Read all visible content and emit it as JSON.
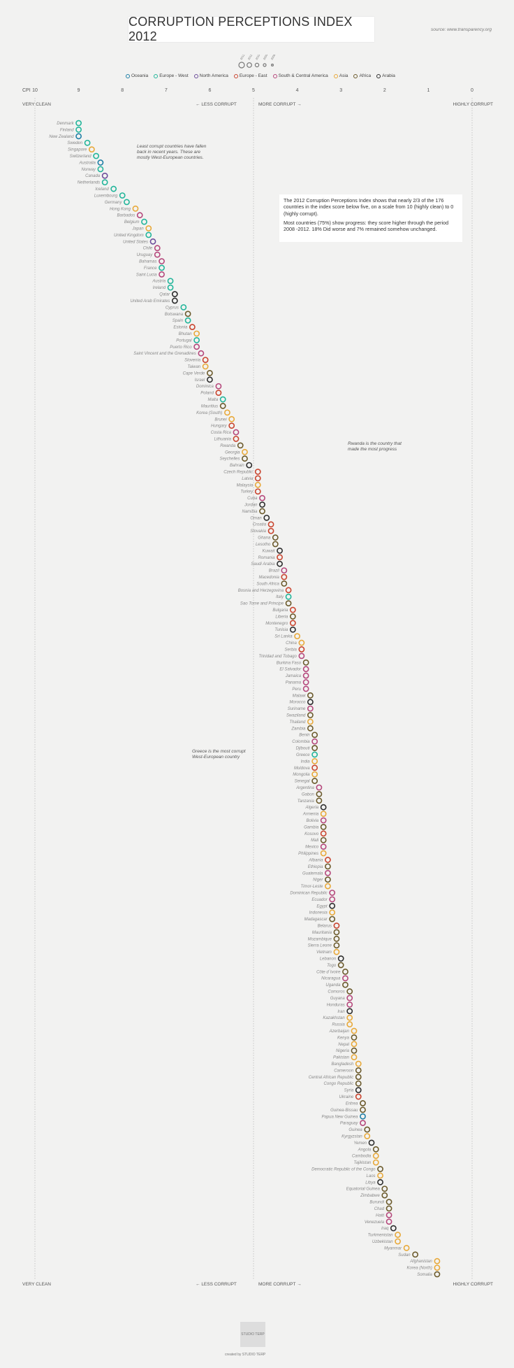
{
  "header": {
    "title": "CORRUPTION PERCEPTIONS INDEX 2012",
    "source": "source: www.transparency.org"
  },
  "size_legend": {
    "years": [
      "2012",
      "2011",
      "2010",
      "2009",
      "2008"
    ]
  },
  "regions": [
    {
      "name": "Oceania",
      "color": "#1f7fa6"
    },
    {
      "name": "Europe - West",
      "color": "#22b59a"
    },
    {
      "name": "North America",
      "color": "#6c4c9a"
    },
    {
      "name": "Europe - East",
      "color": "#c9452f"
    },
    {
      "name": "South & Central America",
      "color": "#b5487c"
    },
    {
      "name": "Asia",
      "color": "#e8a93a"
    },
    {
      "name": "Africa",
      "color": "#6b5a2b"
    },
    {
      "name": "Arabia",
      "color": "#2d2d2d"
    }
  ],
  "axis": {
    "cpi_label": "CPI",
    "ticks": [
      "10",
      "9",
      "8",
      "7",
      "6",
      "5",
      "4",
      "3",
      "2",
      "1",
      "0"
    ],
    "very_clean": "VERY CLEAN",
    "highly_corrupt": "HIGHLY CORRUPT",
    "less_corrupt": "LESS CORRUPT",
    "more_corrupt": "MORE CORRUPT"
  },
  "annotations": {
    "least_corrupt": "Least corrupt countries have fallen back in recent years. These are mostly West-European countries.",
    "rwanda": "Rwanda is the country that made the most progress",
    "greece": "Greece is the most corrupt West-European country",
    "info_p1": "The 2012 Corruption Perceptions Index shows that nearly 2/3 of the 176 countries in the index score below five, on a scale from 10 (highly clean) to 0 (highly corrupt).",
    "info_p2": "Most countries (75%) show progress: they score higher through the period 2008 -2012. 18% Did worse and 7% remained somehow unchanged."
  },
  "footer": {
    "logo": "STUDIO TERP",
    "credit": "created by STUDIO TERP"
  },
  "chart_data": {
    "type": "scatter",
    "title": "CORRUPTION PERCEPTIONS INDEX 2012",
    "xlabel": "CPI",
    "xlim": [
      10,
      0
    ],
    "series_years": [
      "2012",
      "2011",
      "2010",
      "2009",
      "2008"
    ],
    "countries": [
      {
        "name": "Denmark",
        "region": "Europe - West",
        "cpi": 9.0
      },
      {
        "name": "Finland",
        "region": "Europe - West",
        "cpi": 9.0
      },
      {
        "name": "New Zealand",
        "region": "Oceania",
        "cpi": 9.0
      },
      {
        "name": "Sweden",
        "region": "Europe - West",
        "cpi": 8.8
      },
      {
        "name": "Singapore",
        "region": "Asia",
        "cpi": 8.7
      },
      {
        "name": "Switzerland",
        "region": "Europe - West",
        "cpi": 8.6
      },
      {
        "name": "Australia",
        "region": "Oceania",
        "cpi": 8.5
      },
      {
        "name": "Norway",
        "region": "Europe - West",
        "cpi": 8.5
      },
      {
        "name": "Canada",
        "region": "North America",
        "cpi": 8.4
      },
      {
        "name": "Netherlands",
        "region": "Europe - West",
        "cpi": 8.4
      },
      {
        "name": "Iceland",
        "region": "Europe - West",
        "cpi": 8.2
      },
      {
        "name": "Luxembourg",
        "region": "Europe - West",
        "cpi": 8.0
      },
      {
        "name": "Germany",
        "region": "Europe - West",
        "cpi": 7.9
      },
      {
        "name": "Hong Kong",
        "region": "Asia",
        "cpi": 7.7
      },
      {
        "name": "Barbados",
        "region": "South & Central America",
        "cpi": 7.6
      },
      {
        "name": "Belgium",
        "region": "Europe - West",
        "cpi": 7.5
      },
      {
        "name": "Japan",
        "region": "Asia",
        "cpi": 7.4
      },
      {
        "name": "United Kingdom",
        "region": "Europe - West",
        "cpi": 7.4
      },
      {
        "name": "United States",
        "region": "North America",
        "cpi": 7.3
      },
      {
        "name": "Chile",
        "region": "South & Central America",
        "cpi": 7.2
      },
      {
        "name": "Uruguay",
        "region": "South & Central America",
        "cpi": 7.2
      },
      {
        "name": "Bahamas",
        "region": "South & Central America",
        "cpi": 7.1
      },
      {
        "name": "France",
        "region": "Europe - West",
        "cpi": 7.1
      },
      {
        "name": "Saint Lucia",
        "region": "South & Central America",
        "cpi": 7.1
      },
      {
        "name": "Austria",
        "region": "Europe - West",
        "cpi": 6.9
      },
      {
        "name": "Ireland",
        "region": "Europe - West",
        "cpi": 6.9
      },
      {
        "name": "Qatar",
        "region": "Arabia",
        "cpi": 6.8
      },
      {
        "name": "United Arab Emirates",
        "region": "Arabia",
        "cpi": 6.8
      },
      {
        "name": "Cyprus",
        "region": "Europe - West",
        "cpi": 6.6
      },
      {
        "name": "Botswana",
        "region": "Africa",
        "cpi": 6.5
      },
      {
        "name": "Spain",
        "region": "Europe - West",
        "cpi": 6.5
      },
      {
        "name": "Estonia",
        "region": "Europe - East",
        "cpi": 6.4
      },
      {
        "name": "Bhutan",
        "region": "Asia",
        "cpi": 6.3
      },
      {
        "name": "Portugal",
        "region": "Europe - West",
        "cpi": 6.3
      },
      {
        "name": "Puerto Rico",
        "region": "South & Central America",
        "cpi": 6.3
      },
      {
        "name": "Saint Vincent and the Grenadines",
        "region": "South & Central America",
        "cpi": 6.2
      },
      {
        "name": "Slovenia",
        "region": "Europe - East",
        "cpi": 6.1
      },
      {
        "name": "Taiwan",
        "region": "Asia",
        "cpi": 6.1
      },
      {
        "name": "Cape Verde",
        "region": "Africa",
        "cpi": 6.0
      },
      {
        "name": "Israel",
        "region": "Arabia",
        "cpi": 6.0
      },
      {
        "name": "Dominica",
        "region": "South & Central America",
        "cpi": 5.8
      },
      {
        "name": "Poland",
        "region": "Europe - East",
        "cpi": 5.8
      },
      {
        "name": "Malta",
        "region": "Europe - West",
        "cpi": 5.7
      },
      {
        "name": "Mauritius",
        "region": "Africa",
        "cpi": 5.7
      },
      {
        "name": "Korea (South)",
        "region": "Asia",
        "cpi": 5.6
      },
      {
        "name": "Brunei",
        "region": "Asia",
        "cpi": 5.5
      },
      {
        "name": "Hungary",
        "region": "Europe - East",
        "cpi": 5.5
      },
      {
        "name": "Costa Rica",
        "region": "South & Central America",
        "cpi": 5.4
      },
      {
        "name": "Lithuania",
        "region": "Europe - East",
        "cpi": 5.4
      },
      {
        "name": "Rwanda",
        "region": "Africa",
        "cpi": 5.3
      },
      {
        "name": "Georgia",
        "region": "Asia",
        "cpi": 5.2
      },
      {
        "name": "Seychelles",
        "region": "Africa",
        "cpi": 5.2
      },
      {
        "name": "Bahrain",
        "region": "Arabia",
        "cpi": 5.1
      },
      {
        "name": "Czech Republic",
        "region": "Europe - East",
        "cpi": 4.9
      },
      {
        "name": "Latvia",
        "region": "Europe - East",
        "cpi": 4.9
      },
      {
        "name": "Malaysia",
        "region": "Asia",
        "cpi": 4.9
      },
      {
        "name": "Turkey",
        "region": "Europe - East",
        "cpi": 4.9
      },
      {
        "name": "Cuba",
        "region": "South & Central America",
        "cpi": 4.8
      },
      {
        "name": "Jordan",
        "region": "Arabia",
        "cpi": 4.8
      },
      {
        "name": "Namibia",
        "region": "Africa",
        "cpi": 4.8
      },
      {
        "name": "Oman",
        "region": "Arabia",
        "cpi": 4.7
      },
      {
        "name": "Croatia",
        "region": "Europe - East",
        "cpi": 4.6
      },
      {
        "name": "Slovakia",
        "region": "Europe - East",
        "cpi": 4.6
      },
      {
        "name": "Ghana",
        "region": "Africa",
        "cpi": 4.5
      },
      {
        "name": "Lesotho",
        "region": "Africa",
        "cpi": 4.5
      },
      {
        "name": "Kuwait",
        "region": "Arabia",
        "cpi": 4.4
      },
      {
        "name": "Romania",
        "region": "Europe - East",
        "cpi": 4.4
      },
      {
        "name": "Saudi Arabia",
        "region": "Arabia",
        "cpi": 4.4
      },
      {
        "name": "Brazil",
        "region": "South & Central America",
        "cpi": 4.3
      },
      {
        "name": "Macedonia",
        "region": "Europe - East",
        "cpi": 4.3
      },
      {
        "name": "South Africa",
        "region": "Africa",
        "cpi": 4.3
      },
      {
        "name": "Bosnia and Herzegovina",
        "region": "Europe - East",
        "cpi": 4.2
      },
      {
        "name": "Italy",
        "region": "Europe - West",
        "cpi": 4.2
      },
      {
        "name": "Sao Tome and Principe",
        "region": "Africa",
        "cpi": 4.2
      },
      {
        "name": "Bulgaria",
        "region": "Europe - East",
        "cpi": 4.1
      },
      {
        "name": "Liberia",
        "region": "Africa",
        "cpi": 4.1
      },
      {
        "name": "Montenegro",
        "region": "Europe - East",
        "cpi": 4.1
      },
      {
        "name": "Tunisia",
        "region": "Arabia",
        "cpi": 4.1
      },
      {
        "name": "Sri Lanka",
        "region": "Asia",
        "cpi": 4.0
      },
      {
        "name": "China",
        "region": "Asia",
        "cpi": 3.9
      },
      {
        "name": "Serbia",
        "region": "Europe - East",
        "cpi": 3.9
      },
      {
        "name": "Trinidad and Tobago",
        "region": "South & Central America",
        "cpi": 3.9
      },
      {
        "name": "Burkina Faso",
        "region": "Africa",
        "cpi": 3.8
      },
      {
        "name": "El Salvador",
        "region": "South & Central America",
        "cpi": 3.8
      },
      {
        "name": "Jamaica",
        "region": "South & Central America",
        "cpi": 3.8
      },
      {
        "name": "Panama",
        "region": "South & Central America",
        "cpi": 3.8
      },
      {
        "name": "Peru",
        "region": "South & Central America",
        "cpi": 3.8
      },
      {
        "name": "Malawi",
        "region": "Africa",
        "cpi": 3.7
      },
      {
        "name": "Morocco",
        "region": "Arabia",
        "cpi": 3.7
      },
      {
        "name": "Suriname",
        "region": "South & Central America",
        "cpi": 3.7
      },
      {
        "name": "Swaziland",
        "region": "Africa",
        "cpi": 3.7
      },
      {
        "name": "Thailand",
        "region": "Asia",
        "cpi": 3.7
      },
      {
        "name": "Zambia",
        "region": "Africa",
        "cpi": 3.7
      },
      {
        "name": "Benin",
        "region": "Africa",
        "cpi": 3.6
      },
      {
        "name": "Colombia",
        "region": "South & Central America",
        "cpi": 3.6
      },
      {
        "name": "Djibouti",
        "region": "Africa",
        "cpi": 3.6
      },
      {
        "name": "Greece",
        "region": "Europe - West",
        "cpi": 3.6
      },
      {
        "name": "India",
        "region": "Asia",
        "cpi": 3.6
      },
      {
        "name": "Moldova",
        "region": "Europe - East",
        "cpi": 3.6
      },
      {
        "name": "Mongolia",
        "region": "Asia",
        "cpi": 3.6
      },
      {
        "name": "Senegal",
        "region": "Africa",
        "cpi": 3.6
      },
      {
        "name": "Argentina",
        "region": "South & Central America",
        "cpi": 3.5
      },
      {
        "name": "Gabon",
        "region": "Africa",
        "cpi": 3.5
      },
      {
        "name": "Tanzania",
        "region": "Africa",
        "cpi": 3.5
      },
      {
        "name": "Algeria",
        "region": "Arabia",
        "cpi": 3.4
      },
      {
        "name": "Armenia",
        "region": "Asia",
        "cpi": 3.4
      },
      {
        "name": "Bolivia",
        "region": "South & Central America",
        "cpi": 3.4
      },
      {
        "name": "Gambia",
        "region": "Africa",
        "cpi": 3.4
      },
      {
        "name": "Kosovo",
        "region": "Europe - East",
        "cpi": 3.4
      },
      {
        "name": "Mali",
        "region": "Africa",
        "cpi": 3.4
      },
      {
        "name": "Mexico",
        "region": "South & Central America",
        "cpi": 3.4
      },
      {
        "name": "Philippines",
        "region": "Asia",
        "cpi": 3.4
      },
      {
        "name": "Albania",
        "region": "Europe - East",
        "cpi": 3.3
      },
      {
        "name": "Ethiopia",
        "region": "Africa",
        "cpi": 3.3
      },
      {
        "name": "Guatemala",
        "region": "South & Central America",
        "cpi": 3.3
      },
      {
        "name": "Niger",
        "region": "Africa",
        "cpi": 3.3
      },
      {
        "name": "Timor-Leste",
        "region": "Asia",
        "cpi": 3.3
      },
      {
        "name": "Dominican Republic",
        "region": "South & Central America",
        "cpi": 3.2
      },
      {
        "name": "Ecuador",
        "region": "South & Central America",
        "cpi": 3.2
      },
      {
        "name": "Egypt",
        "region": "Arabia",
        "cpi": 3.2
      },
      {
        "name": "Indonesia",
        "region": "Asia",
        "cpi": 3.2
      },
      {
        "name": "Madagascar",
        "region": "Africa",
        "cpi": 3.2
      },
      {
        "name": "Belarus",
        "region": "Europe - East",
        "cpi": 3.1
      },
      {
        "name": "Mauritania",
        "region": "Africa",
        "cpi": 3.1
      },
      {
        "name": "Mozambique",
        "region": "Africa",
        "cpi": 3.1
      },
      {
        "name": "Sierra Leone",
        "region": "Africa",
        "cpi": 3.1
      },
      {
        "name": "Vietnam",
        "region": "Asia",
        "cpi": 3.1
      },
      {
        "name": "Lebanon",
        "region": "Arabia",
        "cpi": 3.0
      },
      {
        "name": "Togo",
        "region": "Africa",
        "cpi": 3.0
      },
      {
        "name": "Côte d´Ivoire",
        "region": "Africa",
        "cpi": 2.9
      },
      {
        "name": "Nicaragua",
        "region": "South & Central America",
        "cpi": 2.9
      },
      {
        "name": "Uganda",
        "region": "Africa",
        "cpi": 2.9
      },
      {
        "name": "Comoros",
        "region": "Africa",
        "cpi": 2.8
      },
      {
        "name": "Guyana",
        "region": "South & Central America",
        "cpi": 2.8
      },
      {
        "name": "Honduras",
        "region": "South & Central America",
        "cpi": 2.8
      },
      {
        "name": "Iran",
        "region": "Arabia",
        "cpi": 2.8
      },
      {
        "name": "Kazakhstan",
        "region": "Asia",
        "cpi": 2.8
      },
      {
        "name": "Russia",
        "region": "Asia",
        "cpi": 2.8
      },
      {
        "name": "Azerbaijan",
        "region": "Asia",
        "cpi": 2.7
      },
      {
        "name": "Kenya",
        "region": "Africa",
        "cpi": 2.7
      },
      {
        "name": "Nepal",
        "region": "Asia",
        "cpi": 2.7
      },
      {
        "name": "Nigeria",
        "region": "Africa",
        "cpi": 2.7
      },
      {
        "name": "Pakistan",
        "region": "Asia",
        "cpi": 2.7
      },
      {
        "name": "Bangladesh",
        "region": "Asia",
        "cpi": 2.6
      },
      {
        "name": "Cameroon",
        "region": "Africa",
        "cpi": 2.6
      },
      {
        "name": "Central African Republic",
        "region": "Africa",
        "cpi": 2.6
      },
      {
        "name": "Congo Republic",
        "region": "Africa",
        "cpi": 2.6
      },
      {
        "name": "Syria",
        "region": "Arabia",
        "cpi": 2.6
      },
      {
        "name": "Ukraine",
        "region": "Europe - East",
        "cpi": 2.6
      },
      {
        "name": "Eritrea",
        "region": "Africa",
        "cpi": 2.5
      },
      {
        "name": "Guinea-Bissau",
        "region": "Africa",
        "cpi": 2.5
      },
      {
        "name": "Papua New Guinea",
        "region": "Oceania",
        "cpi": 2.5
      },
      {
        "name": "Paraguay",
        "region": "South & Central America",
        "cpi": 2.5
      },
      {
        "name": "Guinea",
        "region": "Africa",
        "cpi": 2.4
      },
      {
        "name": "Kyrgyzstan",
        "region": "Asia",
        "cpi": 2.4
      },
      {
        "name": "Yemen",
        "region": "Arabia",
        "cpi": 2.3
      },
      {
        "name": "Angola",
        "region": "Africa",
        "cpi": 2.2
      },
      {
        "name": "Cambodia",
        "region": "Asia",
        "cpi": 2.2
      },
      {
        "name": "Tajikistan",
        "region": "Asia",
        "cpi": 2.2
      },
      {
        "name": "Democratic Republic of the Congo",
        "region": "Africa",
        "cpi": 2.1
      },
      {
        "name": "Laos",
        "region": "Asia",
        "cpi": 2.1
      },
      {
        "name": "Libya",
        "region": "Arabia",
        "cpi": 2.1
      },
      {
        "name": "Equatorial Guinea",
        "region": "Africa",
        "cpi": 2.0
      },
      {
        "name": "Zimbabwe",
        "region": "Africa",
        "cpi": 2.0
      },
      {
        "name": "Burundi",
        "region": "Africa",
        "cpi": 1.9
      },
      {
        "name": "Chad",
        "region": "Africa",
        "cpi": 1.9
      },
      {
        "name": "Haiti",
        "region": "South & Central America",
        "cpi": 1.9
      },
      {
        "name": "Venezuela",
        "region": "South & Central America",
        "cpi": 1.9
      },
      {
        "name": "Iraq",
        "region": "Arabia",
        "cpi": 1.8
      },
      {
        "name": "Turkmenistan",
        "region": "Asia",
        "cpi": 1.7
      },
      {
        "name": "Uzbekistan",
        "region": "Asia",
        "cpi": 1.7
      },
      {
        "name": "Myanmar",
        "region": "Asia",
        "cpi": 1.5
      },
      {
        "name": "Sudan",
        "region": "Africa",
        "cpi": 1.3
      },
      {
        "name": "Afghanistan",
        "region": "Asia",
        "cpi": 0.8
      },
      {
        "name": "Korea (North)",
        "region": "Asia",
        "cpi": 0.8
      },
      {
        "name": "Somalia",
        "region": "Africa",
        "cpi": 0.8
      }
    ]
  }
}
